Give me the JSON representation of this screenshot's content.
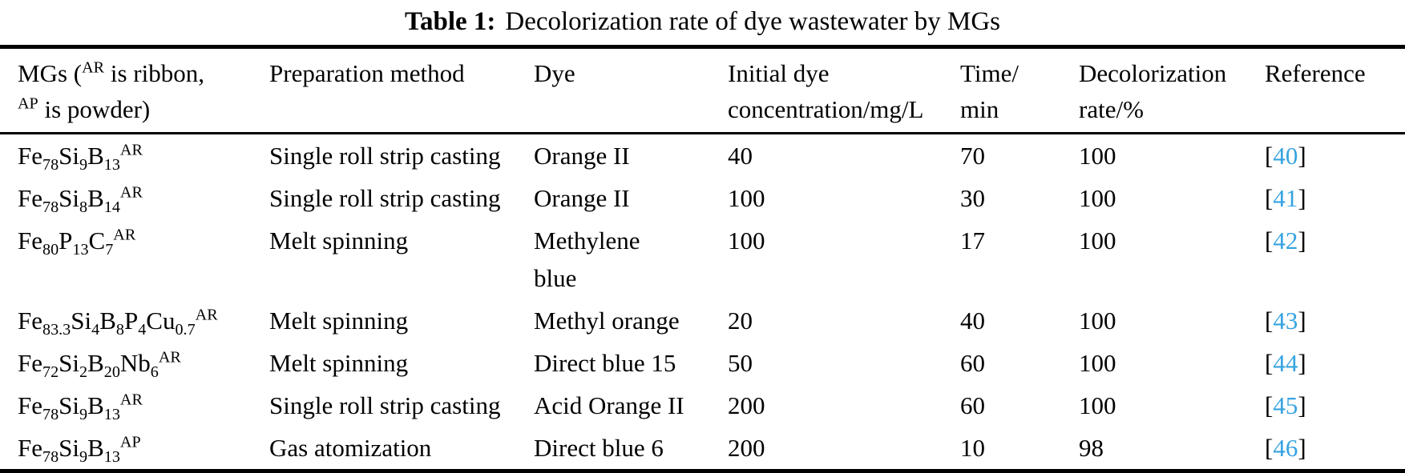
{
  "title": {
    "label": "Table 1:",
    "text": "Decolorization rate of dye wastewater by MGs"
  },
  "columns": [
    {
      "key": "mg",
      "label": "MGs (^{AR} is ribbon,\n^{AP} is powder)"
    },
    {
      "key": "preparation",
      "label": "Preparation method"
    },
    {
      "key": "dye",
      "label": "Dye"
    },
    {
      "key": "concentration",
      "label": "Initial dye\nconcentration/mg/L"
    },
    {
      "key": "time",
      "label": "Time/\nmin"
    },
    {
      "key": "rate",
      "label": "Decolorization\nrate/%"
    },
    {
      "key": "reference",
      "label": "Reference"
    }
  ],
  "rows": [
    {
      "mg": "Fe_{78}Si_{9}B_{13}^{AR}",
      "preparation": "Single roll strip casting",
      "dye": "Orange II",
      "concentration": "40",
      "time": "70",
      "rate": "100",
      "reference": "[40]"
    },
    {
      "mg": "Fe_{78}Si_{8}B_{14}^{AR}",
      "preparation": "Single roll strip casting",
      "dye": "Orange II",
      "concentration": "100",
      "time": "30",
      "rate": "100",
      "reference": "[41]"
    },
    {
      "mg": "Fe_{80}P_{13}C_{7}^{AR}",
      "preparation": "Melt spinning",
      "dye": "Methylene\nblue",
      "concentration": "100",
      "time": "17",
      "rate": "100",
      "reference": "[42]"
    },
    {
      "mg": "Fe_{83.3}Si_{4}B_{8}P_{4}Cu_{0.7}^{AR}",
      "preparation": "Melt spinning",
      "dye": "Methyl orange",
      "concentration": "20",
      "time": "40",
      "rate": "100",
      "reference": "[43]"
    },
    {
      "mg": "Fe_{72}Si_{2}B_{20}Nb_{6}^{AR}",
      "preparation": "Melt spinning",
      "dye": "Direct blue 15",
      "concentration": "50",
      "time": "60",
      "rate": "100",
      "reference": "[44]"
    },
    {
      "mg": "Fe_{78}Si_{9}B_{13}^{AR}",
      "preparation": "Single roll strip casting",
      "dye": "Acid Orange II",
      "concentration": "200",
      "time": "60",
      "rate": "100",
      "reference": "[45]"
    },
    {
      "mg": "Fe_{78}Si_{9}B_{13}^{AP}",
      "preparation": "Gas atomization",
      "dye": "Direct blue 6",
      "concentration": "200",
      "time": "10",
      "rate": "98",
      "reference": "[46]"
    }
  ],
  "colors": {
    "text": "#000000",
    "rule": "#000000",
    "background": "#ffffff",
    "reference_number": "#36a3e0"
  }
}
